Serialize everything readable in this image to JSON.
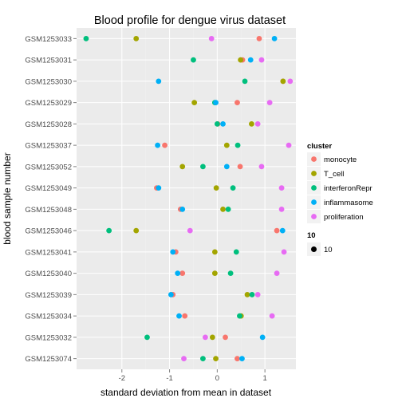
{
  "chart_data": {
    "type": "scatter",
    "title": "Blood profile for dengue virus dataset",
    "xlabel": "standard deviation from mean in dataset",
    "ylabel": "blood sample number",
    "xlim": [
      -2.95,
      1.65
    ],
    "x_ticks": [
      -2,
      -1,
      0,
      1
    ],
    "grid": true,
    "legend_position": "right",
    "categories": [
      "GSM1253033",
      "GSM1253031",
      "GSM1253030",
      "GSM1253029",
      "GSM1253028",
      "GSM1253037",
      "GSM1253052",
      "GSM1253049",
      "GSM1253048",
      "GSM1253046",
      "GSM1253041",
      "GSM1253040",
      "GSM1253039",
      "GSM1253034",
      "GSM1253032",
      "GSM1253074"
    ],
    "series": [
      {
        "name": "monocyte",
        "color": "#F8766D",
        "values": [
          0.88,
          0.53,
          1.38,
          0.42,
          0.01,
          -1.1,
          0.48,
          -1.27,
          -0.77,
          1.25,
          -0.87,
          -0.73,
          -0.93,
          -0.68,
          0.17,
          0.42
        ]
      },
      {
        "name": "T_cell",
        "color": "#A3A500",
        "values": [
          -1.7,
          0.49,
          1.38,
          -0.48,
          0.72,
          0.2,
          -0.73,
          -0.02,
          0.12,
          -1.7,
          -0.05,
          -0.05,
          0.63,
          0.5,
          -0.1,
          -0.03
        ]
      },
      {
        "name": "interferonRepr",
        "color": "#00BF7D",
        "values": [
          -2.75,
          -0.5,
          0.58,
          -0.05,
          0.0,
          0.43,
          -0.3,
          0.33,
          0.23,
          -2.27,
          0.4,
          0.28,
          0.73,
          0.47,
          -1.47,
          -0.3
        ]
      },
      {
        "name": "inflammasome",
        "color": "#00B0F6",
        "values": [
          1.2,
          0.7,
          -1.23,
          -0.03,
          0.12,
          -1.25,
          0.2,
          -1.23,
          -0.73,
          1.37,
          -0.93,
          -0.83,
          -0.97,
          -0.8,
          0.95,
          0.52
        ]
      },
      {
        "name": "proliferation",
        "color": "#E76BF3",
        "values": [
          -0.12,
          0.93,
          1.53,
          1.1,
          0.85,
          1.5,
          0.93,
          1.35,
          1.35,
          -0.57,
          1.4,
          1.25,
          0.85,
          1.15,
          -0.25,
          -0.7
        ]
      }
    ],
    "legend": {
      "color_title": "cluster",
      "size_title": "10",
      "size_label": "10"
    }
  }
}
